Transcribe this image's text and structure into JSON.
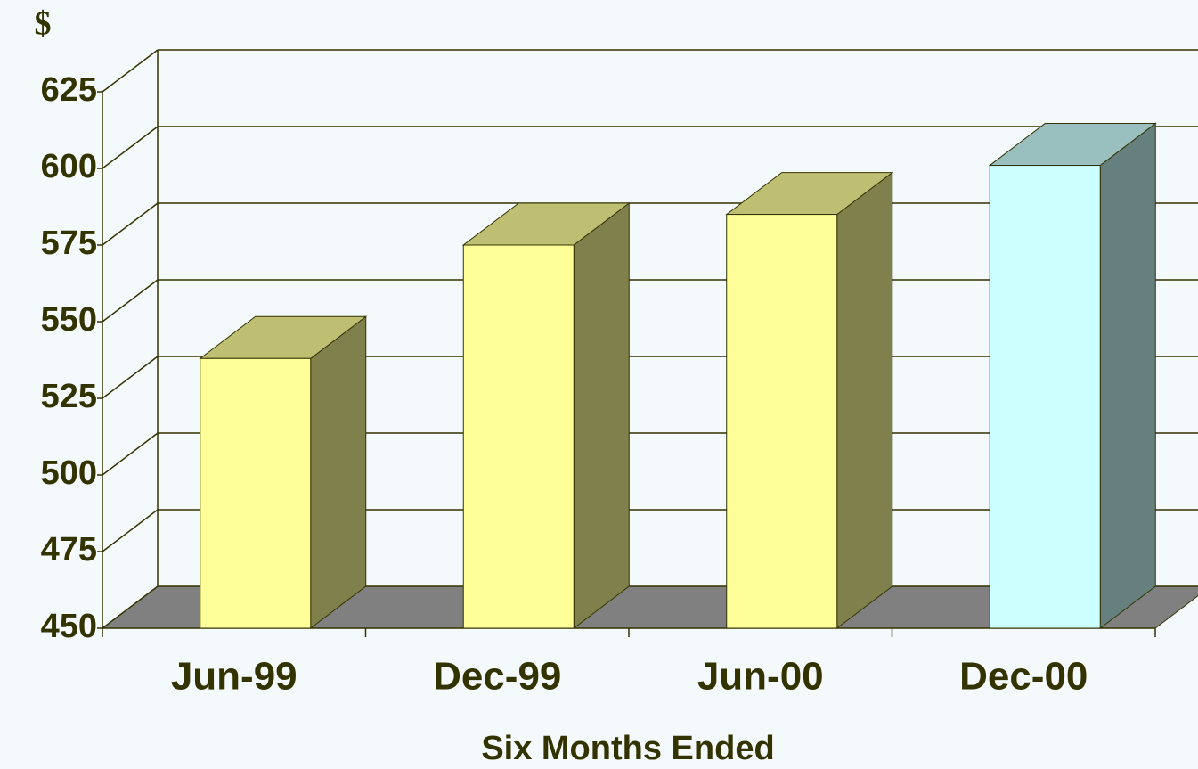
{
  "chart_data": {
    "type": "bar3d",
    "y_label": "$",
    "x_label": "Six Months Ended",
    "categories": [
      "Jun-99",
      "Dec-99",
      "Jun-00",
      "Dec-00"
    ],
    "values": [
      538,
      575,
      585,
      601
    ],
    "colors": [
      "#FFFF99",
      "#FFFF99",
      "#FFFF99",
      "#CCFFFF"
    ],
    "ylim": [
      450,
      625
    ],
    "yticks": [
      450,
      475,
      500,
      525,
      550,
      575,
      600,
      625
    ],
    "grid": true
  }
}
